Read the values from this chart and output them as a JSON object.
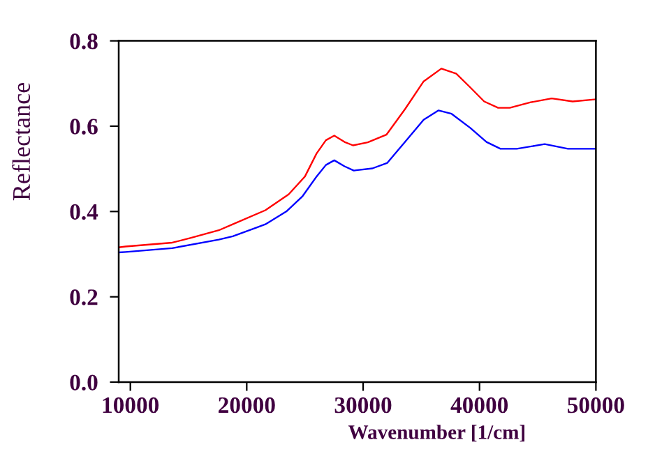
{
  "chart_data": {
    "type": "line",
    "xlabel": "Wavenumber [1/cm]",
    "ylabel": "Reflectance",
    "xlim": [
      9000,
      50000
    ],
    "ylim": [
      0,
      0.8
    ],
    "xticks": [
      10000,
      20000,
      30000,
      40000,
      50000
    ],
    "yticks": [
      {
        "value": 0,
        "label": "0.0"
      },
      0.2,
      0.4,
      0.6,
      0.8
    ],
    "marker": "none",
    "line_style": "solid",
    "series": [
      {
        "color": "#ff0000",
        "x": [
          9000,
          9600,
          13600,
          15200,
          17600,
          18800,
          21600,
          23600,
          25000,
          26000,
          26800,
          27520,
          28400,
          29130,
          30400,
          32000,
          33600,
          35200,
          36720,
          38000,
          39200,
          40400,
          41600,
          42600,
          44400,
          46200,
          48000,
          50000
        ],
        "values": [
          0.316,
          0.318,
          0.327,
          0.338,
          0.356,
          0.37,
          0.403,
          0.44,
          0.482,
          0.536,
          0.567,
          0.578,
          0.563,
          0.555,
          0.562,
          0.58,
          0.64,
          0.705,
          0.735,
          0.723,
          0.691,
          0.658,
          0.643,
          0.643,
          0.656,
          0.665,
          0.658,
          0.663
        ]
      },
      {
        "color": "#0000ff",
        "x": [
          9000,
          9600,
          13600,
          17600,
          18800,
          20800,
          21600,
          23400,
          24800,
          26000,
          26800,
          27520,
          28400,
          29200,
          30800,
          32080,
          33600,
          35200,
          36480,
          37600,
          39200,
          40600,
          41800,
          43200,
          45600,
          47600,
          50000
        ],
        "values": [
          0.304,
          0.305,
          0.314,
          0.334,
          0.342,
          0.362,
          0.37,
          0.4,
          0.436,
          0.482,
          0.509,
          0.52,
          0.506,
          0.496,
          0.501,
          0.514,
          0.563,
          0.615,
          0.637,
          0.629,
          0.596,
          0.563,
          0.547,
          0.547,
          0.558,
          0.547,
          0.547
        ]
      }
    ]
  }
}
